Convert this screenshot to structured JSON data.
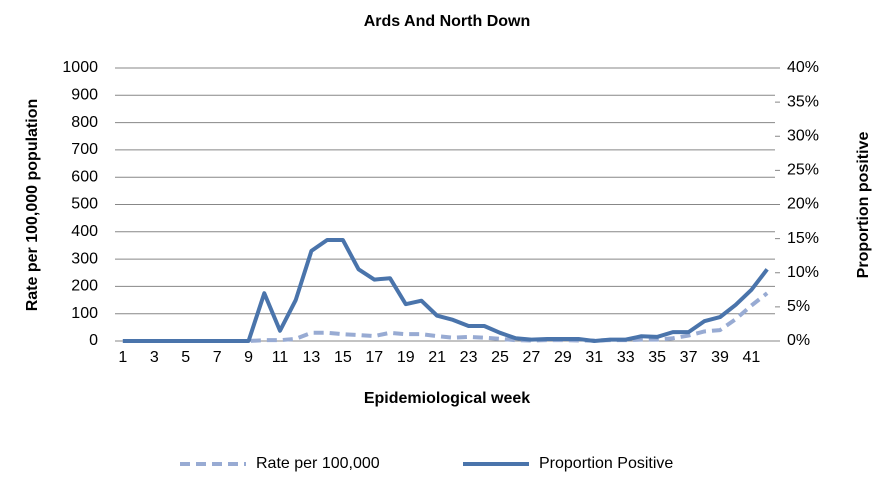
{
  "chart_data": {
    "type": "line",
    "title": "Ards And North Down",
    "x_label": "Epidemiological week",
    "y_label": "Rate per 100,000 population",
    "y2_label": "Proportion positive",
    "categories": [
      1,
      null,
      3,
      null,
      5,
      null,
      7,
      null,
      9,
      null,
      11,
      null,
      13,
      null,
      15,
      null,
      17,
      null,
      19,
      null,
      21,
      null,
      23,
      null,
      25,
      null,
      27,
      null,
      29,
      null,
      31,
      null,
      33,
      null,
      35,
      null,
      37,
      null,
      39,
      null,
      41,
      null
    ],
    "series": [
      {
        "name": "Rate per 100,000",
        "color": "#98abd3",
        "dashed": true,
        "values": [
          0,
          0,
          0,
          0,
          0,
          0,
          0,
          0,
          0,
          3,
          3,
          8,
          30,
          30,
          25,
          22,
          18,
          30,
          25,
          25,
          18,
          12,
          15,
          12,
          8,
          3,
          2,
          3,
          3,
          2,
          2,
          3,
          3,
          5,
          5,
          10,
          20,
          35,
          40,
          80,
          130,
          175
        ]
      },
      {
        "name": "Proportion Positive",
        "color": "#4a74ab",
        "axis": "y2",
        "values": [
          0,
          0,
          0,
          0,
          0,
          0,
          0,
          0,
          0,
          7,
          1.5,
          6,
          13.2,
          14.8,
          14.8,
          10.5,
          9,
          9.2,
          5.4,
          5.9,
          3.7,
          3.1,
          2.2,
          2.2,
          1.2,
          0.4,
          0.2,
          0.3,
          0.3,
          0.3,
          0,
          0.2,
          0.2,
          0.7,
          0.6,
          1.3,
          1.3,
          2.9,
          3.5,
          5.3,
          7.5,
          10.5
        ]
      }
    ],
    "ylim": [
      0,
      1000
    ],
    "yticks": [
      0,
      100,
      200,
      300,
      400,
      500,
      600,
      700,
      800,
      900,
      1000
    ],
    "y2lim": [
      0,
      40
    ],
    "y2ticks": [
      {
        "value": 0,
        "label": "0%"
      },
      {
        "value": 5,
        "label": "5%"
      },
      {
        "value": 10,
        "label": "10%"
      },
      {
        "value": 15,
        "label": "15%"
      },
      {
        "value": 20,
        "label": "20%"
      },
      {
        "value": 25,
        "label": "25%"
      },
      {
        "value": 30,
        "label": "30%"
      },
      {
        "value": 35,
        "label": "35%"
      },
      {
        "value": 40,
        "label": "40%"
      }
    ],
    "grid": true,
    "legend": "bottom"
  }
}
